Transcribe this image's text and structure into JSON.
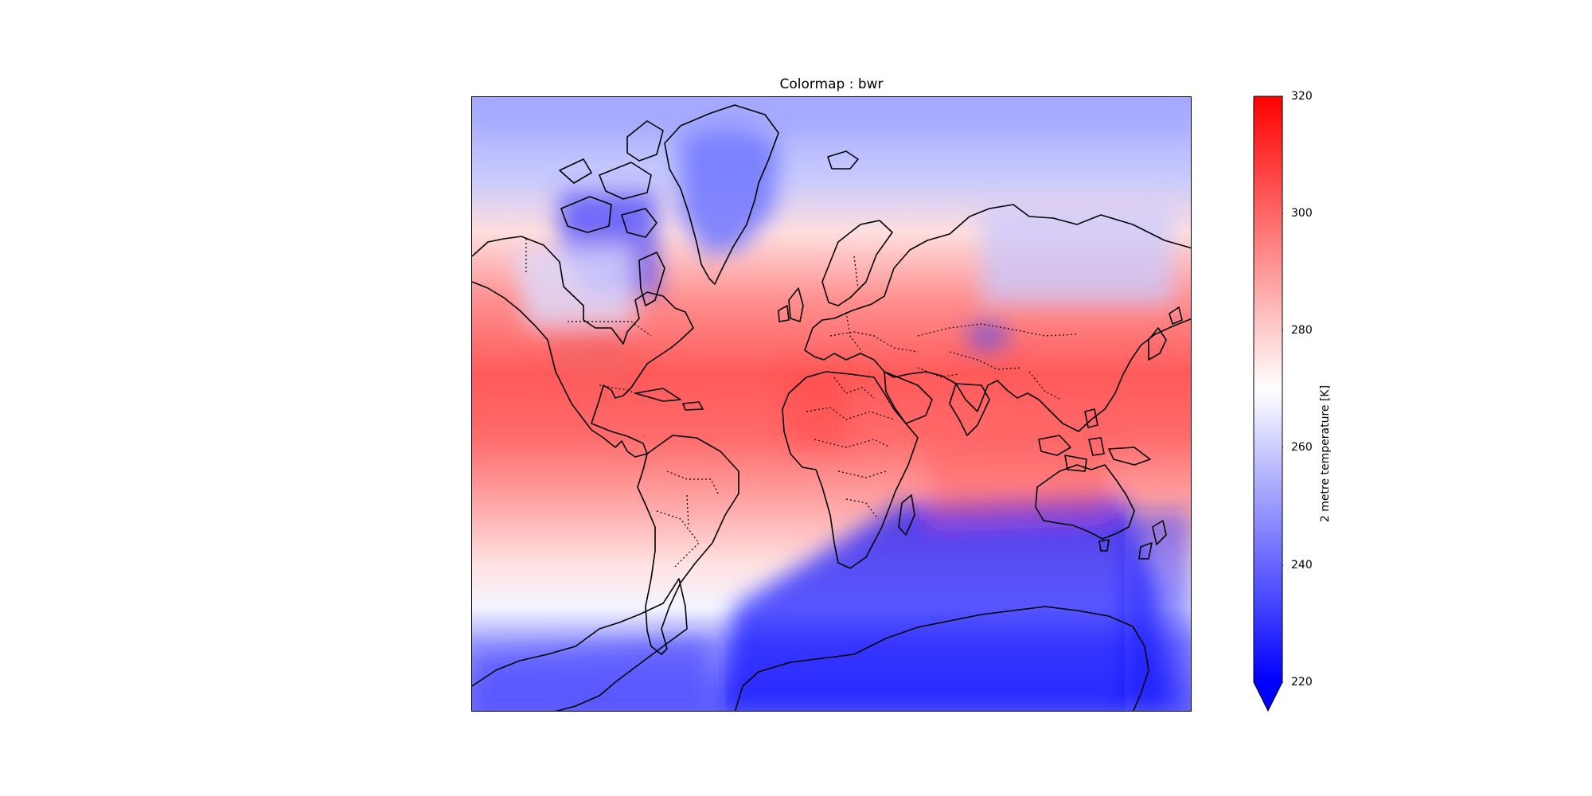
{
  "title": "Colormap : bwr",
  "colorbar": {
    "label": "2 metre temperature [K]",
    "ticks": [
      "320",
      "300",
      "280",
      "260",
      "240",
      "220"
    ],
    "vmin": 220,
    "vmax": 320,
    "extend": "min",
    "colors": {
      "low": "#0000ff",
      "mid": "#ffffff",
      "high": "#ff0000"
    }
  },
  "map": {
    "projection": "Mercator",
    "field": "2 metre temperature",
    "colormap": "bwr",
    "features": [
      "coastlines",
      "country borders (dotted)"
    ]
  }
}
